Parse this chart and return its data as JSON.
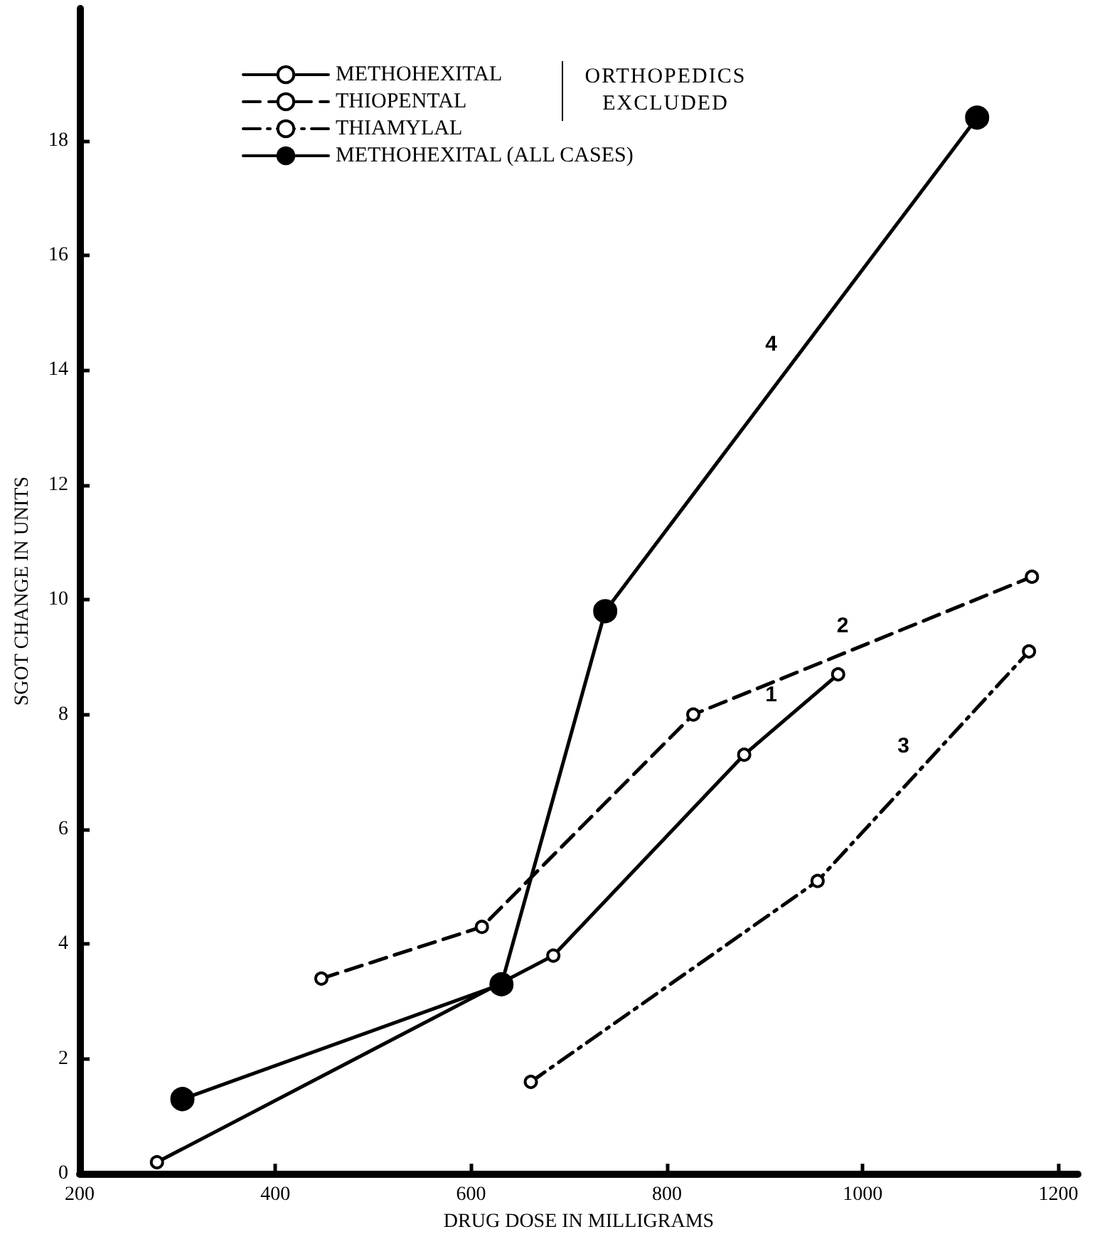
{
  "chart_data": {
    "type": "line",
    "xlabel": "DRUG DOSE IN MILLIGRAMS",
    "ylabel": "SGOT CHANGE IN UNITS",
    "xlim": [
      200,
      1220
    ],
    "xticks": [
      200,
      400,
      600,
      800,
      1000,
      1200
    ],
    "ylim": [
      0,
      20.3
    ],
    "yticks": [
      0,
      2,
      4,
      6,
      8,
      10,
      12,
      14,
      16,
      18
    ],
    "grid": false,
    "legend": "top",
    "marker": "circle",
    "series": [
      {
        "name": "METHOHEXITAL",
        "color": "#000000",
        "line_style": "solid",
        "x": [
          279,
          684,
          879,
          975
        ],
        "values": [
          0.2,
          3.8,
          7.3,
          8.7
        ]
      },
      {
        "name": "THIOPENTAL",
        "color": "#000000",
        "line_style": "dashed",
        "x": [
          447,
          611,
          827,
          1173
        ],
        "values": [
          3.4,
          4.3,
          8.0,
          10.4
        ]
      },
      {
        "name": "THIAMYLAL",
        "color": "#000000",
        "line_style": "dashdot",
        "x": [
          661,
          954,
          1170
        ],
        "values": [
          1.6,
          5.1,
          9.1
        ]
      },
      {
        "name": "METHOHEXITAL (ALL CASES)",
        "color": "#000000",
        "x": [
          305,
          631,
          737,
          1117
        ],
        "values": [
          1.3,
          3.3,
          9.8,
          18.4
        ]
      }
    ],
    "annotations": [
      "ORTHOPEDICS EXCLUDED",
      "1",
      "2",
      "3",
      "4"
    ]
  }
}
